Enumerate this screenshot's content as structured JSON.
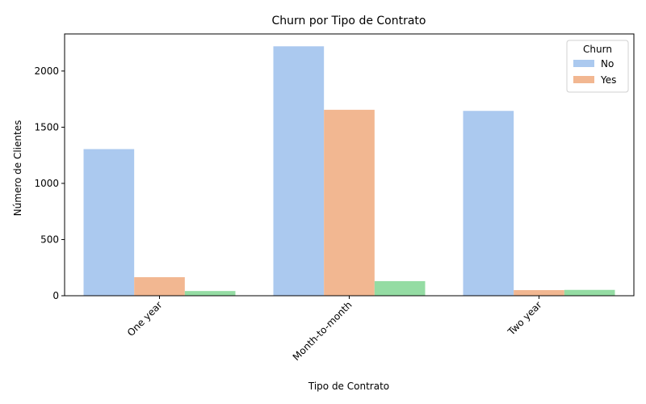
{
  "chart_data": {
    "type": "bar",
    "title": "Churn por Tipo de Contrato",
    "xlabel": "Tipo de Contrato",
    "ylabel": "Número de Clientes",
    "categories": [
      "One year",
      "Month-to-month",
      "Two year"
    ],
    "series": [
      {
        "name": "No",
        "values": [
          1305,
          2220,
          1645
        ],
        "color": "#abc9ef"
      },
      {
        "name": "Yes",
        "values": [
          165,
          1655,
          50
        ],
        "color": "#f2b791"
      },
      {
        "values": [
          42,
          130,
          52
        ],
        "color": "#94dca3"
      }
    ],
    "ylim": [
      0,
      2330
    ],
    "yticks": [
      0,
      500,
      1000,
      1500,
      2000
    ],
    "grid": false,
    "legend": {
      "title": "Churn",
      "placement": "top-right"
    }
  }
}
